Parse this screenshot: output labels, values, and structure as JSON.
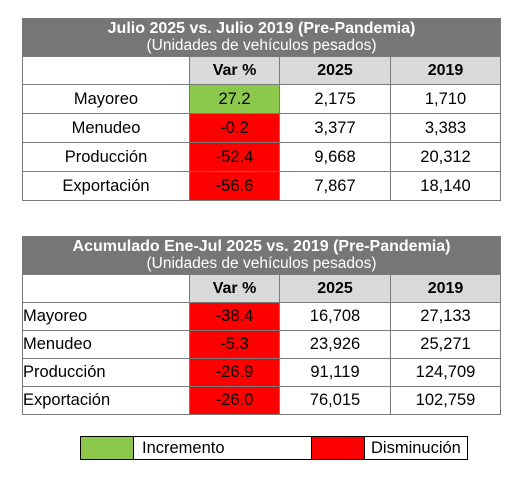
{
  "table1": {
    "title": "Julio 2025 vs. Julio 2019 (Pre-Pandemia)",
    "subtitle": "(Unidades de vehículos pesados)",
    "headers": [
      "Var %",
      "2025",
      "2019"
    ],
    "rows": [
      {
        "label": "Mayoreo",
        "var": "27.2",
        "v2025": "2,175",
        "v2019": "1,710",
        "status": "incremento"
      },
      {
        "label": "Menudeo",
        "var": "-0.2",
        "v2025": "3,377",
        "v2019": "3,383",
        "status": "disminucion"
      },
      {
        "label": "Producción",
        "var": "-52.4",
        "v2025": "9,668",
        "v2019": "20,312",
        "status": "disminucion"
      },
      {
        "label": "Exportación",
        "var": "-56.6",
        "v2025": "7,867",
        "v2019": "18,140",
        "status": "disminucion"
      }
    ]
  },
  "table2": {
    "title": "Acumulado Ene-Jul 2025 vs. 2019 (Pre-Pandemia)",
    "subtitle": "(Unidades de vehículos pesados)",
    "headers": [
      "Var %",
      "2025",
      "2019"
    ],
    "rows": [
      {
        "label": "Mayoreo",
        "var": "-38.4",
        "v2025": "16,708",
        "v2019": "27,133",
        "status": "disminucion"
      },
      {
        "label": "Menudeo",
        "var": "-5.3",
        "v2025": "23,926",
        "v2019": "25,271",
        "status": "disminucion"
      },
      {
        "label": "Producción",
        "var": "-26.9",
        "v2025": "91,119",
        "v2019": "124,709",
        "status": "disminucion"
      },
      {
        "label": "Exportación",
        "var": "-26.0",
        "v2025": "76,015",
        "v2019": "102,759",
        "status": "disminucion"
      }
    ]
  },
  "legend": {
    "increase_label": "Incremento",
    "decrease_label": "Disminución",
    "increase_color": "#8cc84b",
    "decrease_color": "#ff0000"
  }
}
